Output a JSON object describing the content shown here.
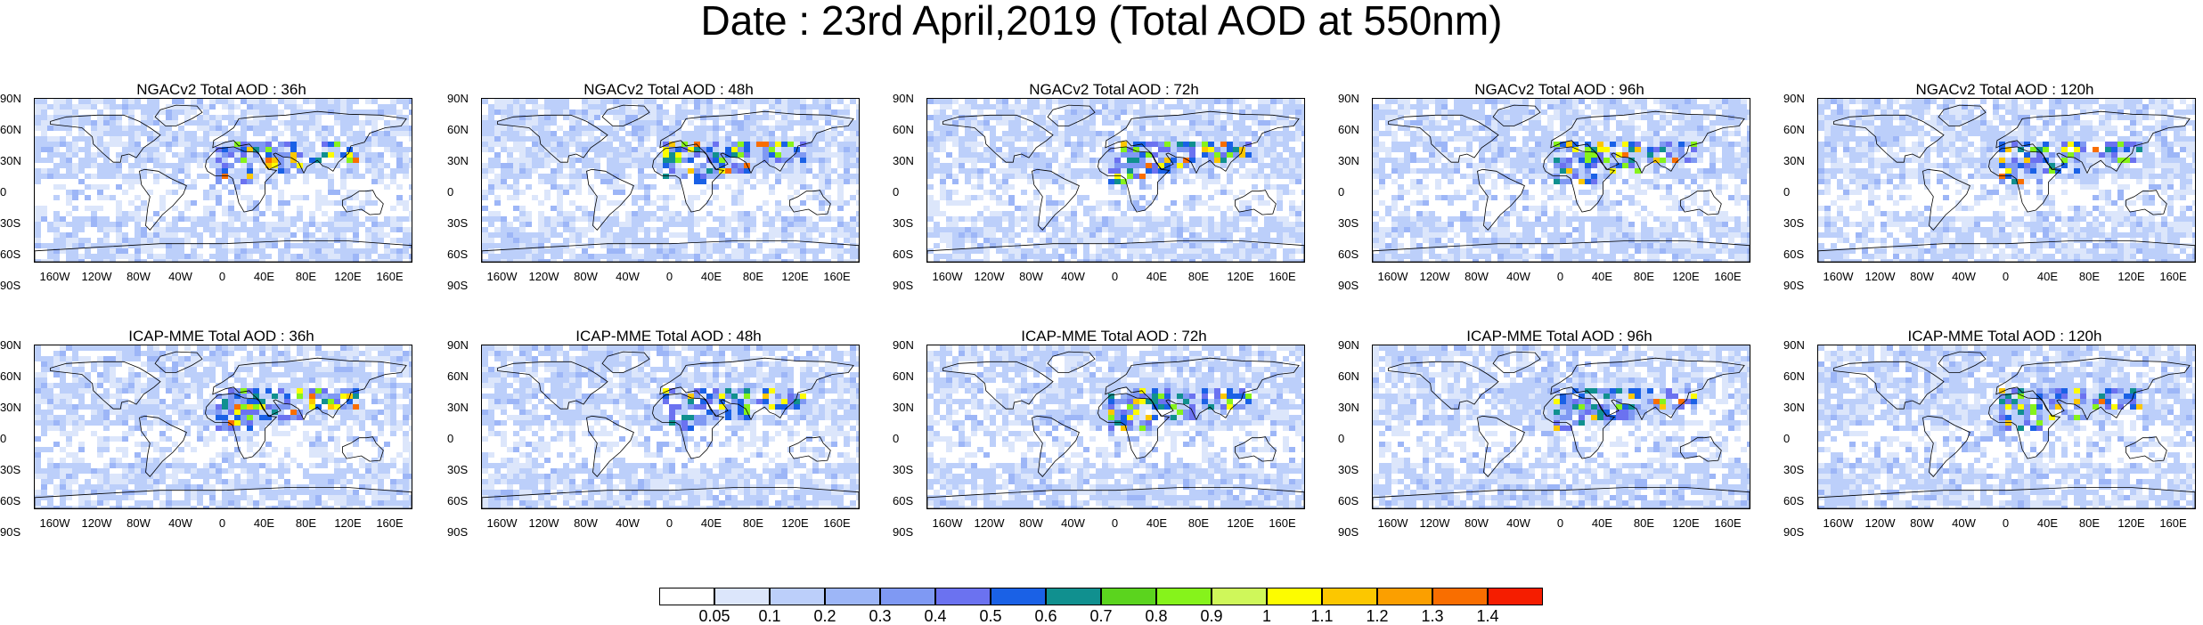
{
  "figure_title": "Date : 23rd April,2019 (Total AOD at 550nm)",
  "lat_labels": [
    "90N",
    "60N",
    "30N",
    "0",
    "30S",
    "60S",
    "90S"
  ],
  "lon_labels": [
    "160W",
    "120W",
    "80W",
    "40W",
    "0",
    "40E",
    "80E",
    "120E",
    "160E"
  ],
  "panels": [
    {
      "title": "NGACv2 Total AOD : 36h"
    },
    {
      "title": "NGACv2 Total AOD : 48h"
    },
    {
      "title": "NGACv2 Total AOD : 72h"
    },
    {
      "title": "NGACv2 Total AOD : 96h"
    },
    {
      "title": "NGACv2 Total AOD : 120h"
    },
    {
      "title": "ICAP-MME Total AOD : 36h"
    },
    {
      "title": "ICAP-MME Total AOD : 48h"
    },
    {
      "title": "ICAP-MME Total AOD : 72h"
    },
    {
      "title": "ICAP-MME Total AOD : 96h"
    },
    {
      "title": "ICAP-MME Total AOD : 120h"
    }
  ],
  "colorbar": {
    "labels": [
      "0.05",
      "0.1",
      "0.2",
      "0.3",
      "0.4",
      "0.5",
      "0.6",
      "0.7",
      "0.8",
      "0.9",
      "1",
      "1.1",
      "1.2",
      "1.3",
      "1.4"
    ],
    "colors": [
      "#ffffff",
      "#dce6fb",
      "#bccffa",
      "#9db6f7",
      "#7f99f3",
      "#6b72f0",
      "#1a61e6",
      "#10908f",
      "#5bd41e",
      "#86f31b",
      "#cff75a",
      "#fdfc00",
      "#fcc700",
      "#fb9f00",
      "#f96e00",
      "#f51d00"
    ]
  },
  "palette": {
    "ocean_base": "#c8d7f9",
    "land_base": "#a9c0f6",
    "coast": "#000000"
  }
}
